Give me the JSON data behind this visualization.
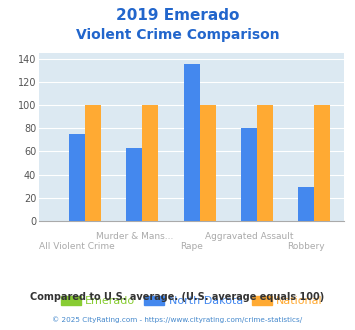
{
  "title_line1": "2019 Emerado",
  "title_line2": "Violent Crime Comparison",
  "categories": [
    "All Violent Crime",
    "Murder & Mans...",
    "Rape",
    "Aggravated Assault",
    "Robbery"
  ],
  "series": {
    "Emerado": [
      0,
      0,
      0,
      0,
      0
    ],
    "North Dakota": [
      75,
      63,
      135,
      80,
      29
    ],
    "National": [
      100,
      100,
      100,
      100,
      100
    ]
  },
  "colors": {
    "Emerado": "#88cc33",
    "North Dakota": "#4488ee",
    "National": "#ffaa33"
  },
  "ylim": [
    0,
    145
  ],
  "yticks": [
    0,
    20,
    40,
    60,
    80,
    100,
    120,
    140
  ],
  "background_color": "#dce9f2",
  "title_color": "#2266cc",
  "footer_text": "Compared to U.S. average. (U.S. average equals 100)",
  "footer_color": "#333333",
  "copyright_text": "© 2025 CityRating.com - https://www.cityrating.com/crime-statistics/",
  "copyright_color": "#4488cc",
  "bar_width": 0.28,
  "xlabel_top_indices": [
    1,
    3
  ],
  "xlabel_bottom_indices": [
    0,
    2,
    4
  ]
}
